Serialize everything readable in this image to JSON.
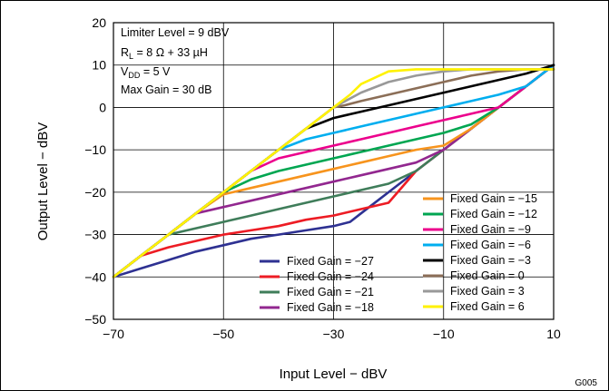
{
  "chart_data": {
    "type": "line",
    "xlabel": "Input Level − dBV",
    "ylabel": "Output Level − dBV",
    "xlim": [
      -70,
      10
    ],
    "ylim": [
      -50,
      20
    ],
    "x_ticks": [
      "−70",
      "−50",
      "−30",
      "−10",
      "10"
    ],
    "y_ticks": [
      "20",
      "10",
      "0",
      "−10",
      "−20",
      "−30",
      "−40",
      "−50"
    ],
    "grid": true,
    "figure_code": "G005",
    "annotations": {
      "limiter": "Limiter Level = 9 dBV",
      "rl_main": "R",
      "rl_sub": "L",
      "rl_rest": " = 8 Ω + 33 µH",
      "vdd_main": "V",
      "vdd_sub": "DD",
      "vdd_rest": " = 5 V",
      "maxgain": "Max Gain = 30 dB"
    },
    "legend_left": [
      {
        "name": "Fixed Gain = −27",
        "color": "#2e3192"
      },
      {
        "name": "Fixed Gain = −24",
        "color": "#ed1c24"
      },
      {
        "name": "Fixed Gain = −21",
        "color": "#3f7d5a"
      },
      {
        "name": "Fixed Gain = −18",
        "color": "#92278f"
      }
    ],
    "legend_right": [
      {
        "name": "Fixed Gain = −15",
        "color": "#f7941d"
      },
      {
        "name": "Fixed Gain = −12",
        "color": "#00a651"
      },
      {
        "name": "Fixed Gain = −9",
        "color": "#ec008c"
      },
      {
        "name": "Fixed Gain = −6",
        "color": "#00aeef"
      },
      {
        "name": "Fixed Gain = −3",
        "color": "#000000"
      },
      {
        "name": "Fixed Gain = 0",
        "color": "#8b6e57"
      },
      {
        "name": "Fixed Gain = 3",
        "color": "#999999"
      },
      {
        "name": "Fixed Gain = 6",
        "color": "#fff200"
      }
    ],
    "series": [
      {
        "color": "#2e3192",
        "x": [
          -70,
          -65,
          -60,
          -55,
          -50,
          -45,
          -40,
          -35,
          -30,
          -27,
          -25,
          -22,
          -20,
          -15,
          -10,
          -5,
          0,
          5,
          10
        ],
        "y": [
          -40,
          -38,
          -36,
          -34,
          -32.5,
          -31,
          -30,
          -29,
          -28,
          -27,
          -25,
          -22,
          -20,
          -15,
          -10,
          -5,
          0,
          5,
          10
        ]
      },
      {
        "color": "#ed1c24",
        "x": [
          -70,
          -65,
          -60,
          -55,
          -50,
          -45,
          -40,
          -35,
          -30,
          -25,
          -20,
          -15,
          -10,
          -5,
          0,
          5,
          10
        ],
        "y": [
          -40,
          -35,
          -33,
          -31.5,
          -30,
          -29,
          -28,
          -26.5,
          -25.5,
          -24,
          -22.5,
          -15,
          -10,
          -5,
          0,
          5,
          10
        ]
      },
      {
        "color": "#3f7d5a",
        "x": [
          -70,
          -65,
          -60,
          -55,
          -50,
          -45,
          -40,
          -35,
          -30,
          -25,
          -20,
          -15,
          -10,
          -5,
          0,
          5,
          10
        ],
        "y": [
          -40,
          -35,
          -30,
          -28.5,
          -27,
          -25.5,
          -24,
          -22.5,
          -21,
          -19.5,
          -18,
          -15,
          -10,
          -5,
          0,
          5,
          10
        ]
      },
      {
        "color": "#92278f",
        "x": [
          -70,
          -65,
          -60,
          -55,
          -50,
          -45,
          -40,
          -35,
          -30,
          -25,
          -20,
          -15,
          -10,
          -5,
          0,
          5,
          10
        ],
        "y": [
          -40,
          -35,
          -30,
          -25,
          -23.5,
          -22,
          -20.5,
          -19,
          -17.5,
          -16,
          -14.5,
          -13,
          -10,
          -5,
          0,
          5,
          10
        ]
      },
      {
        "color": "#f7941d",
        "x": [
          -70,
          -65,
          -60,
          -55,
          -50,
          -45,
          -40,
          -35,
          -30,
          -25,
          -20,
          -15,
          -10,
          -5,
          0,
          5,
          10
        ],
        "y": [
          -40,
          -35,
          -30,
          -25,
          -20.5,
          -19,
          -17.5,
          -16,
          -14.5,
          -13,
          -11.5,
          -10,
          -9,
          -5,
          0,
          5,
          10
        ]
      },
      {
        "color": "#00a651",
        "x": [
          -70,
          -65,
          -60,
          -55,
          -50,
          -45,
          -40,
          -35,
          -30,
          -25,
          -20,
          -15,
          -10,
          -5,
          0,
          5,
          10
        ],
        "y": [
          -40,
          -35,
          -30,
          -25,
          -20,
          -17,
          -15,
          -13.5,
          -12,
          -10.5,
          -9,
          -7.5,
          -6,
          -4,
          0,
          5,
          10
        ]
      },
      {
        "color": "#ec008c",
        "x": [
          -70,
          -65,
          -60,
          -55,
          -50,
          -45,
          -40,
          -35,
          -30,
          -25,
          -20,
          -15,
          -10,
          -5,
          0,
          5,
          10
        ],
        "y": [
          -40,
          -35,
          -30,
          -25,
          -20,
          -15,
          -12,
          -10.5,
          -9,
          -7.5,
          -6,
          -4.5,
          -3,
          -1.5,
          0,
          5,
          10
        ]
      },
      {
        "color": "#00aeef",
        "x": [
          -70,
          -65,
          -60,
          -55,
          -50,
          -45,
          -40,
          -35,
          -30,
          -25,
          -20,
          -15,
          -10,
          -5,
          0,
          5,
          10
        ],
        "y": [
          -40,
          -35,
          -30,
          -25,
          -20,
          -15,
          -10,
          -7.5,
          -6,
          -4.5,
          -3,
          -1.5,
          0,
          1.5,
          3,
          5,
          10
        ]
      },
      {
        "color": "#000000",
        "x": [
          -70,
          -65,
          -60,
          -55,
          -50,
          -45,
          -40,
          -35,
          -30,
          -25,
          -20,
          -15,
          -10,
          -5,
          0,
          5,
          10
        ],
        "y": [
          -40,
          -35,
          -30,
          -25,
          -20,
          -15,
          -10,
          -5,
          -2.5,
          -1,
          0.5,
          2,
          3.5,
          5,
          6.5,
          8,
          10
        ]
      },
      {
        "color": "#8b6e57",
        "x": [
          -70,
          -65,
          -60,
          -55,
          -50,
          -45,
          -40,
          -35,
          -30,
          -28,
          -25,
          -20,
          -15,
          -10,
          -5,
          0,
          5,
          10
        ],
        "y": [
          -40,
          -35,
          -30,
          -25,
          -20,
          -15,
          -10,
          -5,
          0,
          0.5,
          1.5,
          3,
          4.5,
          6,
          7.5,
          8.5,
          9,
          9
        ]
      },
      {
        "color": "#999999",
        "x": [
          -70,
          -65,
          -60,
          -55,
          -50,
          -45,
          -40,
          -35,
          -30,
          -25,
          -20,
          -15,
          -10,
          -5,
          0,
          5,
          10
        ],
        "y": [
          -40,
          -35,
          -30,
          -25,
          -20,
          -15,
          -10,
          -5,
          0,
          3.5,
          6,
          7.5,
          8.5,
          9,
          9,
          9,
          9
        ]
      },
      {
        "color": "#fff200",
        "x": [
          -70,
          -65,
          -60,
          -55,
          -50,
          -45,
          -40,
          -35,
          -30,
          -27,
          -25,
          -20,
          -15,
          -10,
          -5,
          0,
          5,
          10
        ],
        "y": [
          -40,
          -35,
          -30,
          -25,
          -20,
          -15,
          -10,
          -5,
          0,
          3,
          5.5,
          8.5,
          9,
          9,
          9,
          9,
          9,
          9
        ]
      }
    ]
  }
}
